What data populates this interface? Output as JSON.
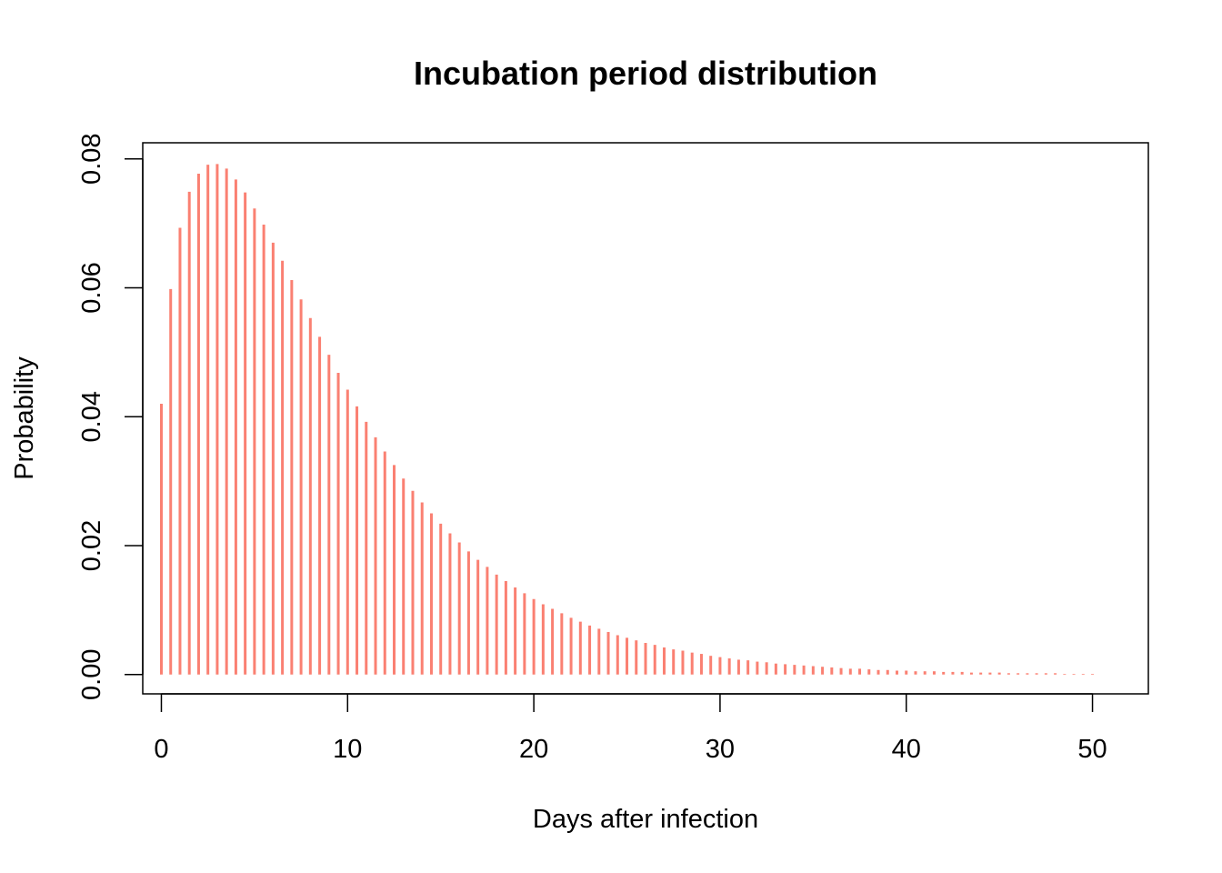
{
  "chart_data": {
    "type": "bar",
    "title": "Incubation period distribution",
    "xlabel": "Days after infection",
    "ylabel": "Probability",
    "xlim": [
      -1,
      53
    ],
    "ylim": [
      -0.003,
      0.0825
    ],
    "xticks": [
      "0",
      "10",
      "20",
      "30",
      "40",
      "50"
    ],
    "yticks": [
      "0.00",
      "0.02",
      "0.04",
      "0.06",
      "0.08"
    ],
    "bar_color": "#fa8072",
    "grid": false,
    "x": [
      0,
      0.5,
      1,
      1.5,
      2,
      2.5,
      3,
      3.5,
      4,
      4.5,
      5,
      5.5,
      6,
      6.5,
      7,
      7.5,
      8,
      8.5,
      9,
      9.5,
      10,
      10.5,
      11,
      11.5,
      12,
      12.5,
      13,
      13.5,
      14,
      14.5,
      15,
      15.5,
      16,
      16.5,
      17,
      17.5,
      18,
      18.5,
      19,
      19.5,
      20,
      20.5,
      21,
      21.5,
      22,
      22.5,
      23,
      23.5,
      24,
      24.5,
      25,
      25.5,
      26,
      26.5,
      27,
      27.5,
      28,
      28.5,
      29,
      29.5,
      30,
      30.5,
      31,
      31.5,
      32,
      32.5,
      33,
      33.5,
      34,
      34.5,
      35,
      35.5,
      36,
      36.5,
      37,
      37.5,
      38,
      38.5,
      39,
      39.5,
      40,
      40.5,
      41,
      41.5,
      42,
      42.5,
      43,
      43.5,
      44,
      44.5,
      45,
      45.5,
      46,
      46.5,
      47,
      47.5,
      48,
      48.5,
      49,
      49.5,
      50
    ],
    "values": [
      0.042,
      0.0598,
      0.0693,
      0.0749,
      0.0777,
      0.0791,
      0.0792,
      0.0785,
      0.0768,
      0.0748,
      0.0723,
      0.0698,
      0.067,
      0.0642,
      0.0612,
      0.0582,
      0.0553,
      0.0524,
      0.0496,
      0.0468,
      0.0442,
      0.0416,
      0.0392,
      0.0368,
      0.0346,
      0.0325,
      0.0304,
      0.0285,
      0.0267,
      0.025,
      0.0234,
      0.0219,
      0.0205,
      0.0191,
      0.0178,
      0.0167,
      0.0155,
      0.0145,
      0.0135,
      0.0126,
      0.0117,
      0.0109,
      0.0102,
      0.0095,
      0.0088,
      0.0082,
      0.0076,
      0.0071,
      0.0066,
      0.0061,
      0.0057,
      0.0053,
      0.0049,
      0.0046,
      0.0042,
      0.0039,
      0.0037,
      0.0034,
      0.0032,
      0.0029,
      0.0027,
      0.0025,
      0.0023,
      0.0022,
      0.002,
      0.0019,
      0.0017,
      0.0016,
      0.0015,
      0.0014,
      0.0013,
      0.0012,
      0.0011,
      0.001,
      0.0009,
      0.0009,
      0.0008,
      0.0007,
      0.0007,
      0.0006,
      0.0006,
      0.0005,
      0.0005,
      0.0005,
      0.0004,
      0.0004,
      0.0004,
      0.0003,
      0.0003,
      0.0003,
      0.0003,
      0.0002,
      0.0002,
      0.0002,
      0.0002,
      0.0002,
      0.0002,
      0.0001,
      0.0001,
      0.0001,
      0.0001
    ]
  }
}
